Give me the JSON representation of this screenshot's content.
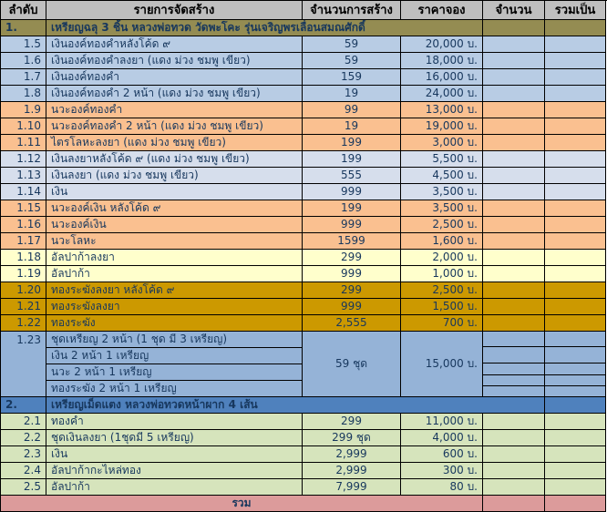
{
  "colors": {
    "header_bg": "#BFBFBF",
    "olive": "#948C52",
    "light_blue": "#B8CCE4",
    "pale_blue": "#D6DEEC",
    "peach": "#FAC090",
    "pale_yellow": "#FFFFCC",
    "gold": "#CC9900",
    "med_blue": "#95B3D7",
    "blue": "#4F81BD",
    "green": "#D6E4BC",
    "pink": "#DC9B9B",
    "border": "#000000",
    "text": "#17375D",
    "header_text": "#000000"
  },
  "table": {
    "columns": [
      {
        "key": "no",
        "label": "ลำดับ"
      },
      {
        "key": "item",
        "label": "รายการจัดสร้าง"
      },
      {
        "key": "made",
        "label": "จำนวนการสร้าง"
      },
      {
        "key": "price",
        "label": "ราคาจอง"
      },
      {
        "key": "amount",
        "label": "จำนวน"
      },
      {
        "key": "sum",
        "label": "รวมเป็น"
      }
    ],
    "rows": [
      {
        "type": "section1",
        "no": "1.",
        "item": "เหรียญฉลุ 3 ชิ้น หลวงพ่อทวด วัดพะโคะ รุ่นเจริญพรเลื่อนสมณศักดิ์",
        "bg": "olive"
      },
      {
        "type": "item",
        "no": "1.5",
        "item": "เงินองค์ทองคำหลังโค้ด ๙",
        "qty": "59",
        "price": "20,000 บ.",
        "bg": "light_blue"
      },
      {
        "type": "item",
        "no": "1.6",
        "item": "เงินองค์ทองคำลงยา (แดง ม่วง ชมพู เขียว)",
        "qty": "59",
        "price": "18,000 บ.",
        "bg": "light_blue"
      },
      {
        "type": "item",
        "no": "1.7",
        "item": "เงินองค์ทองคำ",
        "qty": "159",
        "price": "16,000 บ.",
        "bg": "light_blue"
      },
      {
        "type": "item",
        "no": "1.8",
        "item": "เงินองค์ทองคำ 2 หน้า (แดง ม่วง ชมพู เขียว)",
        "qty": "19",
        "price": "24,000 บ.",
        "bg": "light_blue"
      },
      {
        "type": "item",
        "no": "1.9",
        "item": "นวะองค์ทองคำ",
        "qty": "99",
        "price": "13,000 บ.",
        "bg": "peach"
      },
      {
        "type": "item",
        "no": "1.10",
        "item": "นวะองค์ทองคำ 2 หน้า (แดง ม่วง ชมพู เขียว)",
        "qty": "19",
        "price": "19,000 บ.",
        "bg": "peach"
      },
      {
        "type": "item",
        "no": "1.11",
        "item": "ไตรโลหะลงยา (แดง ม่วง ชมพู เขียว)",
        "qty": "199",
        "price": "3,000 บ.",
        "bg": "peach"
      },
      {
        "type": "item",
        "no": "1.12",
        "item": "เงินลงยาหลังโค้ด ๙ (แดง ม่วง ชมพู เขียว)",
        "qty": "199",
        "price": "5,500 บ.",
        "bg": "pale_blue"
      },
      {
        "type": "item",
        "no": "1.13",
        "item": "เงินลงยา (แดง ม่วง ชมพู เขียว)",
        "qty": "555",
        "price": "4,500 บ.",
        "bg": "pale_blue"
      },
      {
        "type": "item",
        "no": "1.14",
        "item": "เงิน",
        "qty": "999",
        "price": "3,500 บ.",
        "bg": "pale_blue"
      },
      {
        "type": "item",
        "no": "1.15",
        "item": "นวะองค์เงิน หลังโค้ด ๙",
        "qty": "199",
        "price": "3,500 บ.",
        "bg": "peach"
      },
      {
        "type": "item",
        "no": "1.16",
        "item": "นวะองค์เงิน",
        "qty": "999",
        "price": "2,500 บ.",
        "bg": "peach"
      },
      {
        "type": "item",
        "no": "1.17",
        "item": "นวะโลหะ",
        "qty": "1599",
        "price": "1,600 บ.",
        "bg": "peach"
      },
      {
        "type": "item",
        "no": "1.18",
        "item": "อัลปาก้าลงยา",
        "qty": "299",
        "price": "2,000 บ.",
        "bg": "pale_yellow"
      },
      {
        "type": "item",
        "no": "1.19",
        "item": "อัลปาก้า",
        "qty": "999",
        "price": "1,000 บ.",
        "bg": "pale_yellow"
      },
      {
        "type": "item",
        "no": "1.20",
        "item": "ทองระฆังลงยา หลังโค้ด ๙",
        "qty": "299",
        "price": "2,500 บ.",
        "bg": "gold"
      },
      {
        "type": "item",
        "no": "1.21",
        "item": "ทองระฆังลงยา",
        "qty": "999",
        "price": "1,500 บ.",
        "bg": "gold"
      },
      {
        "type": "item",
        "no": "1.22",
        "item": "ทองระฆัง",
        "qty": "2,555",
        "price": "700 บ.",
        "bg": "gold"
      },
      {
        "type": "block",
        "no": "1.23",
        "items": [
          "ชุดเหรียญ 2 หน้า (1 ชุด มี 3 เหรียญ)",
          "เงิน 2 หน้า 1 เหรียญ",
          "นวะ 2 หน้า 1 เหรียญ",
          "ทองระฆัง 2 หน้า 1 เหรียญ"
        ],
        "qty": "59 ชุด",
        "price": "15,000 บ.",
        "bg": "med_blue",
        "right_subrow_heights": [
          17,
          18,
          13,
          12,
          12
        ]
      },
      {
        "type": "section2",
        "no": "2.",
        "item": "เหรียญเม็ดแตง หลวงพ่อทวดหน้าผาก 4 เส้น",
        "bg": "blue"
      },
      {
        "type": "item",
        "no": "2.1",
        "item": "ทองคำ",
        "qty": "299",
        "price": "11,000 บ.",
        "bg": "green"
      },
      {
        "type": "item",
        "no": "2.2",
        "item": "ชุดเงินลงยา (1ชุดมี 5 เหรียญ)",
        "qty": "299 ชุด",
        "price": "4,000 บ.",
        "bg": "green"
      },
      {
        "type": "item",
        "no": "2.3",
        "item": "เงิน",
        "qty": "2,999",
        "price": "600 บ.",
        "bg": "green"
      },
      {
        "type": "item",
        "no": "2.4",
        "item": "อัลปาก้ากะไหล่ทอง",
        "qty": "2,999",
        "price": "300 บ.",
        "bg": "green"
      },
      {
        "type": "item",
        "no": "2.5",
        "item": "อัลปาก้า",
        "qty": "7,999",
        "price": "80 บ.",
        "bg": "green"
      },
      {
        "type": "total",
        "label": "รวม",
        "bg": "pink"
      }
    ]
  }
}
